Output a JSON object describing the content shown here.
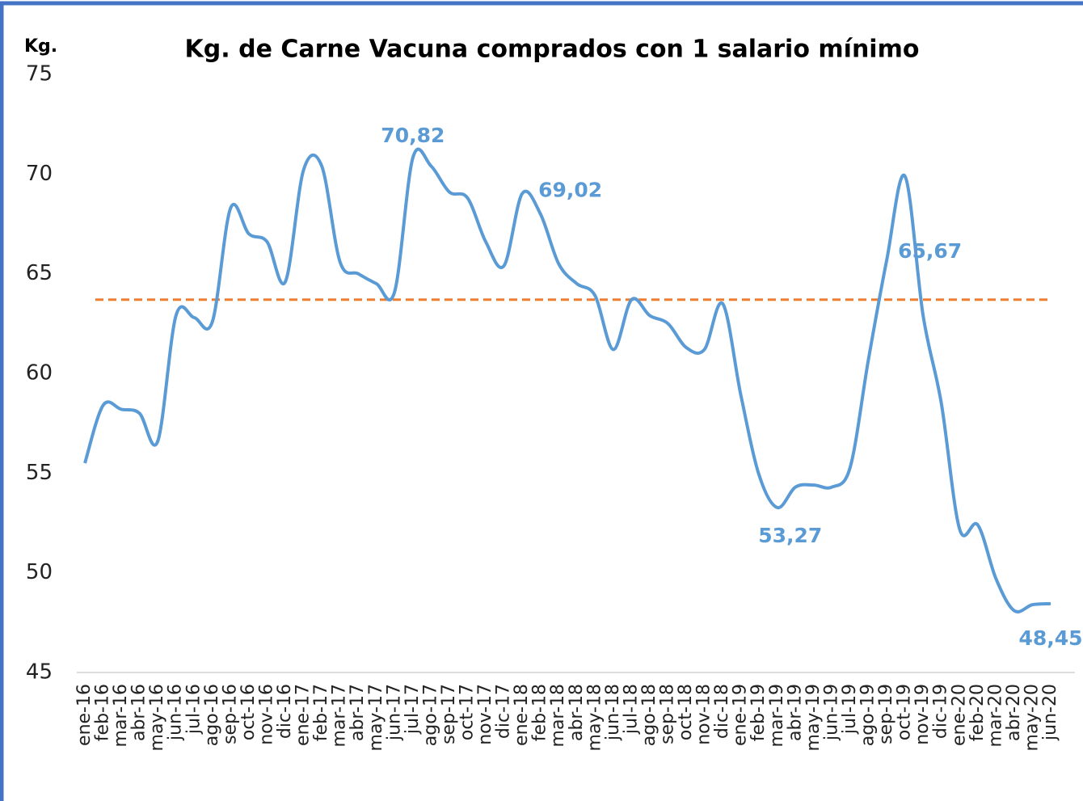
{
  "chart_data": {
    "type": "line",
    "title": "Kg. de Carne Vacuna comprados con 1 salario mínimo",
    "y_axis_label": "Kg.",
    "categories": [
      "ene-16",
      "feb-16",
      "mar-16",
      "abr-16",
      "may-16",
      "jun-16",
      "jul-16",
      "ago-16",
      "sep-16",
      "oct-16",
      "nov-16",
      "dic-16",
      "ene-17",
      "feb-17",
      "mar-17",
      "abr-17",
      "may-17",
      "jun-17",
      "jul-17",
      "ago-17",
      "sep-17",
      "oct-17",
      "nov-17",
      "dic-17",
      "ene-18",
      "feb-18",
      "mar-18",
      "abr-18",
      "may-18",
      "jun-18",
      "jul-18",
      "ago-18",
      "sep-18",
      "oct-18",
      "nov-18",
      "dic-18",
      "ene-19",
      "feb-19",
      "mar-19",
      "abr-19",
      "may-19",
      "jun-19",
      "jul-19",
      "ago-19",
      "sep-19",
      "oct-19",
      "nov-19",
      "dic-19",
      "ene-20",
      "feb-20",
      "mar-20",
      "abr-20",
      "may-20",
      "jun-20"
    ],
    "series": [
      {
        "color": "#5b9bd5",
        "values": [
          55.5,
          58.4,
          58.2,
          58.0,
          56.6,
          62.9,
          62.8,
          62.6,
          68.3,
          67.0,
          66.6,
          64.6,
          70.2,
          70.4,
          65.6,
          65.0,
          64.5,
          64.1,
          70.82,
          70.4,
          69.1,
          68.8,
          66.6,
          65.4,
          69.02,
          68.0,
          65.5,
          64.5,
          63.9,
          61.2,
          63.7,
          62.9,
          62.5,
          61.3,
          61.2,
          63.5,
          58.9,
          54.9,
          53.27,
          54.3,
          54.4,
          54.3,
          55.3,
          60.7,
          65.67,
          69.9,
          62.9,
          58.5,
          52.2,
          52.4,
          49.7,
          48.1,
          48.4,
          48.45
        ],
        "value_labels": [
          null,
          null,
          null,
          null,
          null,
          null,
          null,
          null,
          null,
          null,
          null,
          null,
          null,
          null,
          null,
          null,
          null,
          null,
          "70,82",
          null,
          null,
          null,
          null,
          null,
          "69,02",
          null,
          null,
          null,
          null,
          null,
          null,
          null,
          null,
          null,
          null,
          null,
          null,
          null,
          "53,27",
          null,
          null,
          null,
          null,
          null,
          "65,67",
          null,
          null,
          null,
          null,
          null,
          null,
          null,
          null,
          "48,45"
        ]
      }
    ],
    "reference_line": {
      "value": 63.7,
      "color": "#ed7d31"
    },
    "ylim": [
      45,
      75
    ],
    "yticks": [
      45,
      50,
      55,
      60,
      65,
      70,
      75
    ]
  }
}
